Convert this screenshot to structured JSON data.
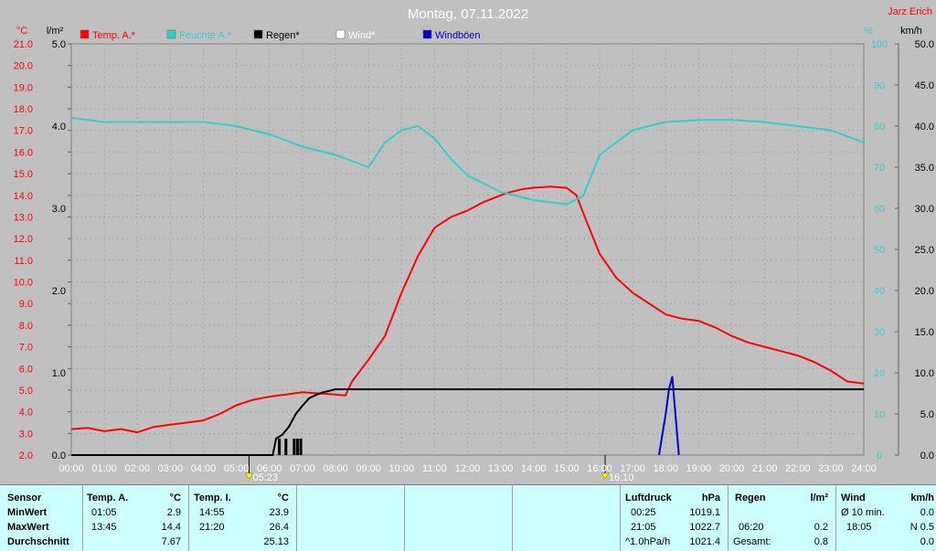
{
  "title": "Montag, 07.11.2022",
  "author": "Jarz Erich",
  "colors": {
    "temp": "#ff0000",
    "humidity": "#33cccc",
    "rain": "#000000",
    "wind": "#ffffff",
    "gust": "#0000cc",
    "bg": "#c0c0c0",
    "table": "#ccffff"
  },
  "axes": {
    "temp_unit": "°C",
    "rain_unit": "l/m²",
    "hum_unit": "%",
    "wind_unit": "km/h",
    "temp_ticks": [
      "21.0",
      "20.0",
      "19.0",
      "18.0",
      "17.0",
      "16.0",
      "15.0",
      "14.0",
      "13.0",
      "12.0",
      "11.0",
      "10.0",
      "9.0",
      "8.0",
      "7.0",
      "6.0",
      "5.0",
      "4.0",
      "3.0",
      "2.0"
    ],
    "rain_ticks": [
      "5.0",
      "4.0",
      "3.0",
      "2.0",
      "1.0",
      "0.0"
    ],
    "hum_ticks": [
      "100",
      "90",
      "80",
      "70",
      "60",
      "50",
      "40",
      "30",
      "20",
      "10",
      "0"
    ],
    "wind_ticks": [
      "50.0",
      "45.0",
      "40.0",
      "35.0",
      "30.0",
      "25.0",
      "20.0",
      "15.0",
      "10.0",
      "5.0",
      "0.0"
    ],
    "x_ticks": [
      "00:00",
      "01:00",
      "02:00",
      "03:00",
      "04:00",
      "05:00",
      "06:00",
      "07:00",
      "08:00",
      "09:00",
      "10:00",
      "11:00",
      "12:00",
      "13:00",
      "14:00",
      "15:00",
      "16:00",
      "17:00",
      "18:00",
      "19:00",
      "20:00",
      "21:00",
      "22:00",
      "23:00",
      "24:00"
    ],
    "sunrise": "05:23",
    "sunset": "16:10"
  },
  "legend": [
    {
      "label": "Temp. A.*",
      "color": "#ff0000"
    },
    {
      "label": "Feuchte A.*",
      "color": "#33cccc"
    },
    {
      "label": "Regen*",
      "color": "#000000"
    },
    {
      "label": "Wind*",
      "color": "#ffffff"
    },
    {
      "label": "Windböen",
      "color": "#0000cc"
    }
  ],
  "chart_data": {
    "type": "line",
    "title": "Montag, 07.11.2022",
    "x_range": [
      0,
      24
    ],
    "temp_range": [
      2,
      21
    ],
    "rain_range": [
      0,
      5
    ],
    "humidity_range": [
      0,
      100
    ],
    "wind_range": [
      0,
      50
    ],
    "series": [
      {
        "name": "Temp. A.*",
        "axis": "temp",
        "x": [
          0,
          0.5,
          1,
          1.5,
          2,
          2.5,
          3,
          3.5,
          4,
          4.5,
          5,
          5.5,
          6,
          6.5,
          7,
          7.5,
          8,
          8.3,
          8.5,
          9,
          9.5,
          10,
          10.5,
          11,
          11.5,
          12,
          12.5,
          13,
          13.3,
          13.7,
          14,
          14.5,
          15,
          15.3,
          15.5,
          16,
          16.5,
          17,
          17.5,
          18,
          18.5,
          19,
          19.5,
          20,
          20.5,
          21,
          21.5,
          22,
          22.5,
          23,
          23.5,
          24
        ],
        "y": [
          3.2,
          3.25,
          3.1,
          3.2,
          3.05,
          3.3,
          3.4,
          3.5,
          3.6,
          3.9,
          4.3,
          4.55,
          4.7,
          4.8,
          4.9,
          4.85,
          4.8,
          4.75,
          5.4,
          6.4,
          7.5,
          9.5,
          11.2,
          12.5,
          13.0,
          13.3,
          13.7,
          14.0,
          14.15,
          14.3,
          14.35,
          14.4,
          14.35,
          14.0,
          13.2,
          11.3,
          10.2,
          9.5,
          9.0,
          8.5,
          8.3,
          8.2,
          7.9,
          7.5,
          7.2,
          7.0,
          6.8,
          6.6,
          6.3,
          5.9,
          5.4,
          5.3
        ]
      },
      {
        "name": "Feuchte A.*",
        "axis": "humidity",
        "x": [
          0,
          1,
          2,
          3,
          4,
          5,
          6,
          7,
          8,
          9,
          9.5,
          10,
          10.5,
          11,
          11.5,
          12,
          13,
          14,
          15,
          15.5,
          16,
          17,
          18,
          19,
          20,
          21,
          22,
          23,
          24
        ],
        "y": [
          82,
          81,
          81,
          81,
          81,
          80,
          78,
          75,
          73,
          70,
          76,
          79,
          80,
          77,
          72,
          68,
          64,
          62,
          61,
          63,
          73,
          79,
          81,
          81.5,
          81.5,
          81,
          80,
          79,
          76
        ]
      },
      {
        "name": "Regen*",
        "axis": "rain",
        "x": [
          0,
          6.1,
          6.2,
          6.4,
          6.6,
          6.8,
          7.0,
          7.2,
          7.4,
          7.6,
          7.8,
          8.0,
          8.5,
          24
        ],
        "y": [
          0,
          0,
          0.2,
          0.25,
          0.35,
          0.5,
          0.6,
          0.69,
          0.73,
          0.76,
          0.78,
          0.8,
          0.8,
          0.8
        ]
      },
      {
        "name": "Windböen",
        "axis": "wind",
        "x": [
          17.8,
          18.0,
          18.1,
          18.2,
          18.4
        ],
        "y": [
          0,
          5,
          8,
          9.5,
          0
        ]
      }
    ]
  },
  "stats": {
    "sensor": {
      "h": "Sensor",
      "min": "MinWert",
      "max": "MaxWert",
      "avg": "Durchschnitt"
    },
    "temp_a": {
      "h": "Temp. A.",
      "unit": "°C",
      "min_time": "01:05",
      "min_val": "2.9",
      "max_time": "13:45",
      "max_val": "14.4",
      "avg": "7.67"
    },
    "temp_i": {
      "h": "Temp. I.",
      "unit": "°C",
      "min_time": "14:55",
      "min_val": "23.9",
      "max_time": "21:20",
      "max_val": "26.4",
      "avg": "25.13"
    },
    "pressure": {
      "h": "Luftdruck",
      "unit": "hPa",
      "min_time": "00:25",
      "min_val": "1019.1",
      "max_time": "21:05",
      "max_val": "1022.7",
      "trend": "^1.0hPa/h",
      "avg": "1021.4"
    },
    "rain": {
      "h": "Regen",
      "unit": "l/m²",
      "max_time": "06:20",
      "max_val": "0.2",
      "total_label": "Gesamt:",
      "total": "0.8"
    },
    "wind": {
      "h": "Wind",
      "unit": "km/h",
      "avg_label": "Ø 10 min.",
      "avg": "0.0",
      "max_time": "18:05",
      "max_val": "N 0.5",
      "last": "0.0"
    }
  }
}
